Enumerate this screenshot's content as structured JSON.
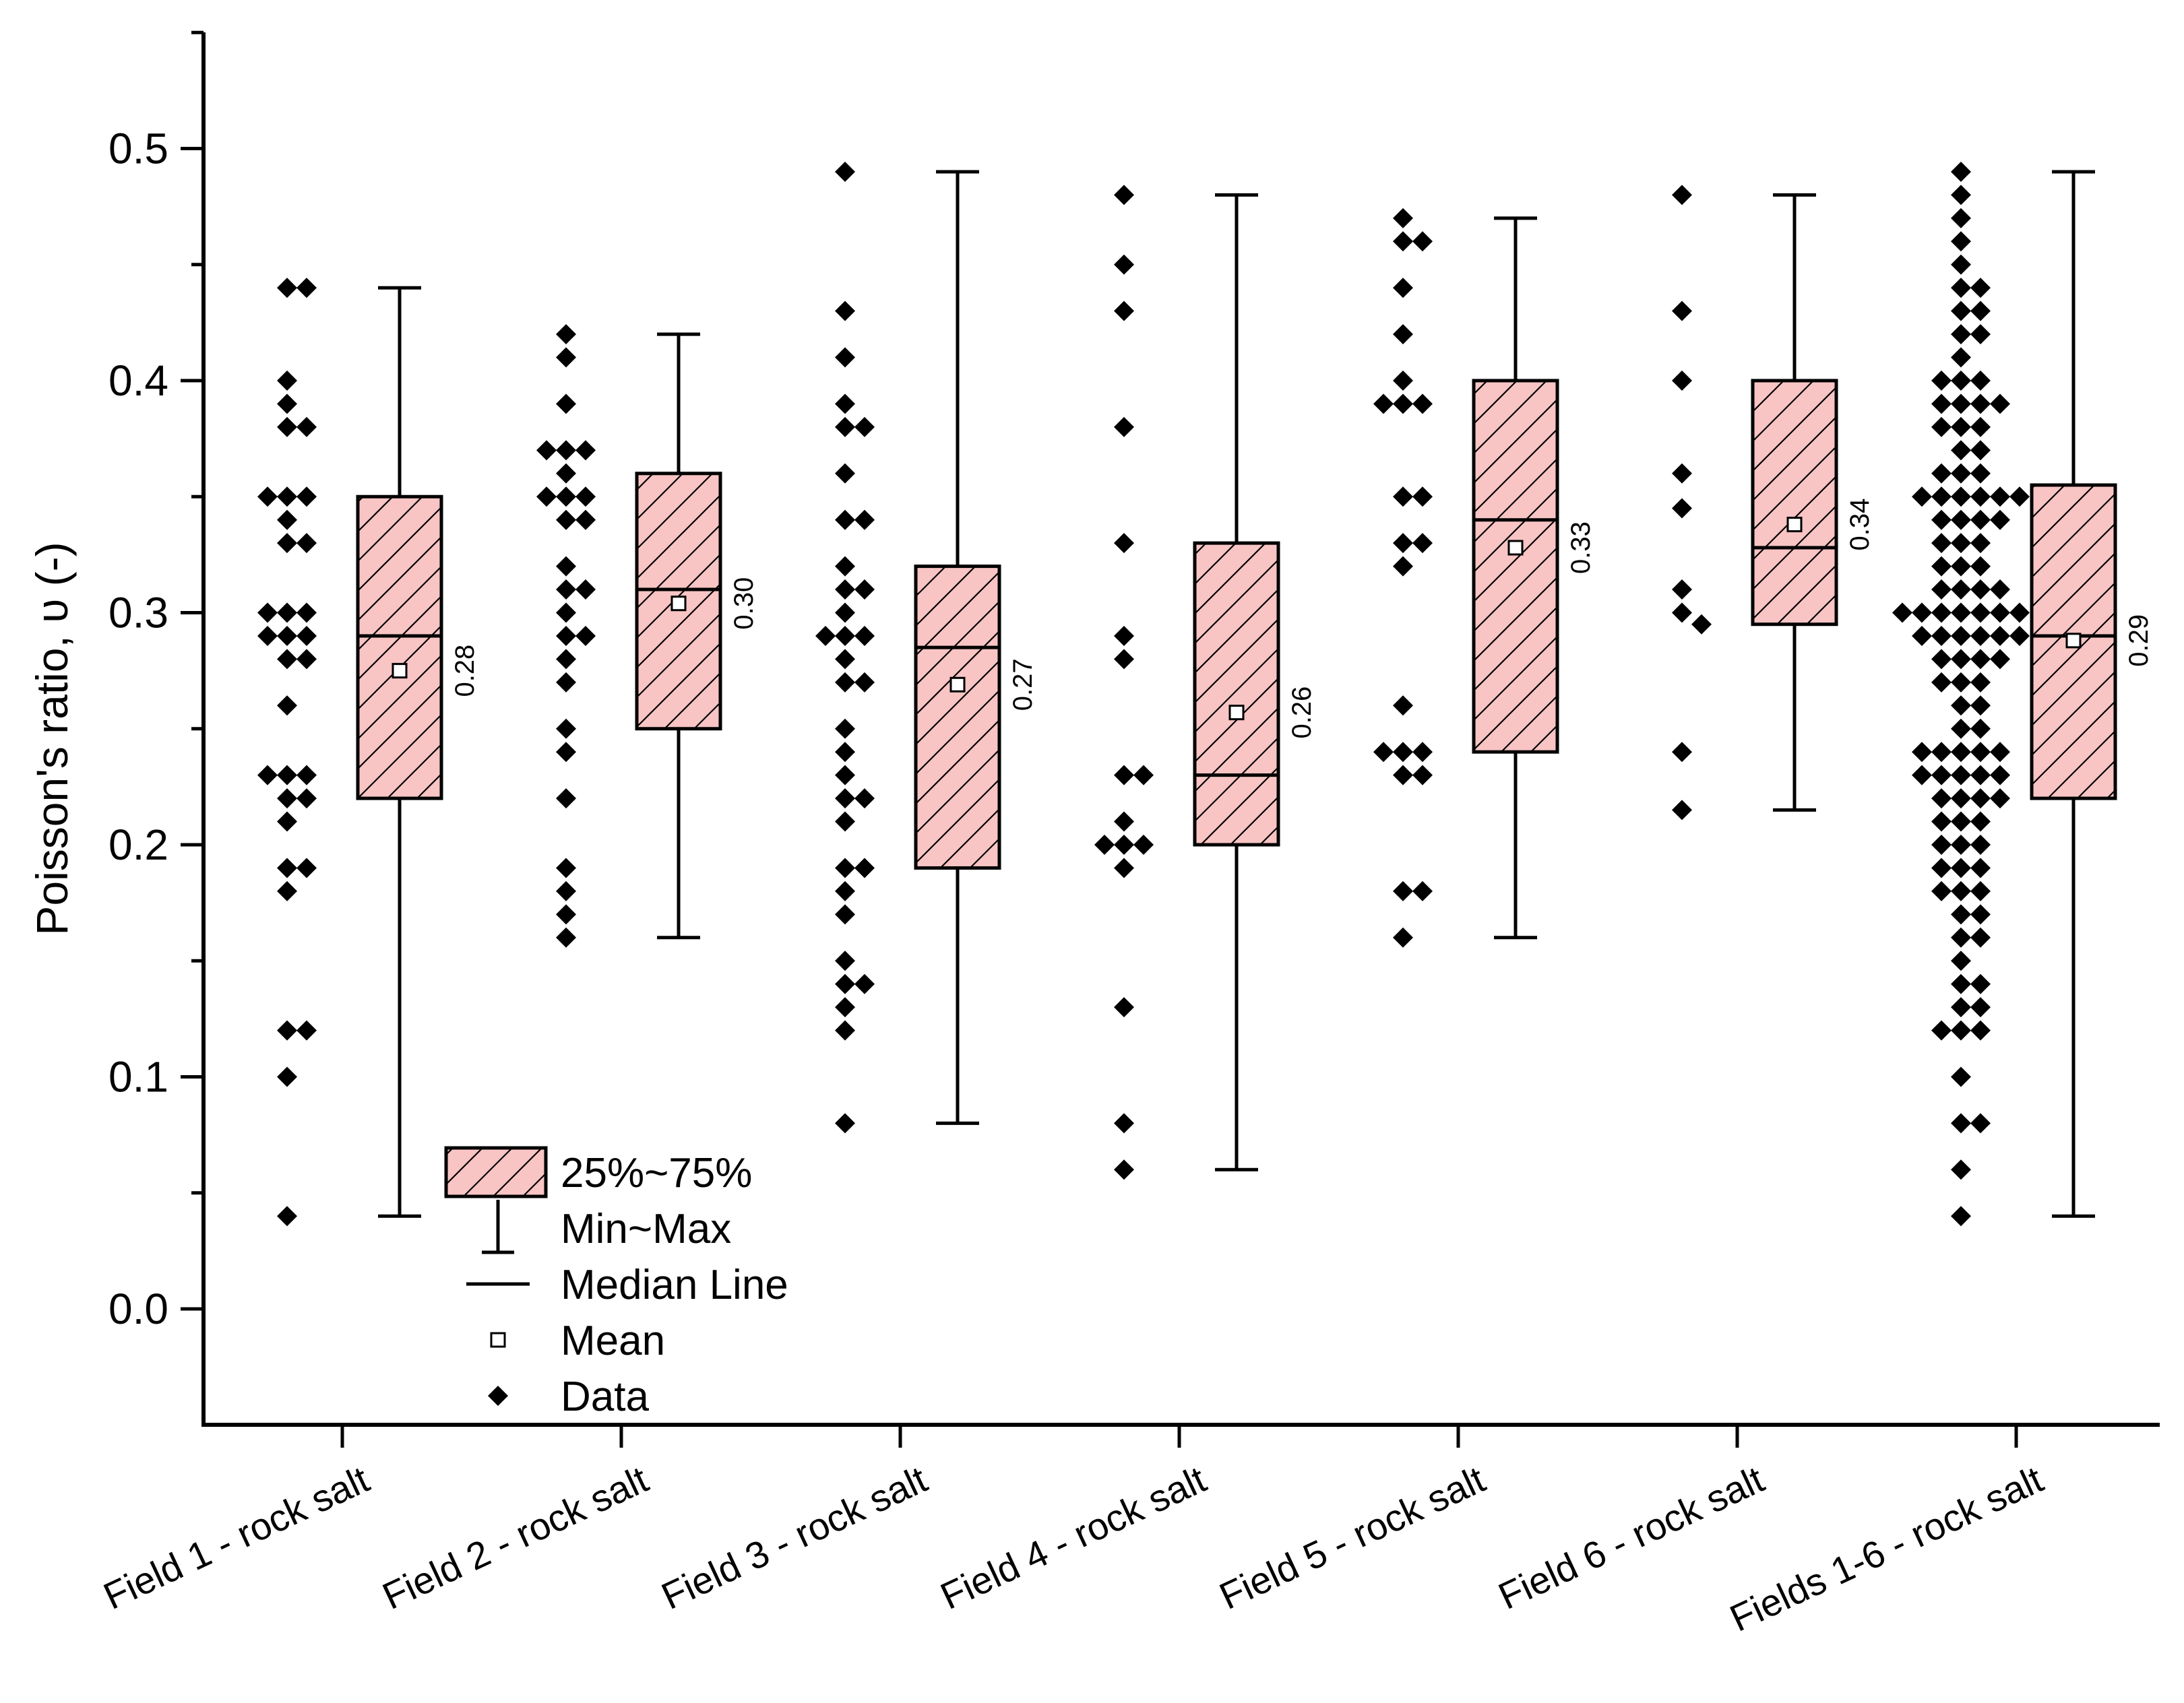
{
  "chart_data": {
    "type": "box",
    "title": "",
    "xlabel": "",
    "ylabel": "Poisson's ratio, υ (-)",
    "ylim": [
      -0.05,
      0.55
    ],
    "yticks": [
      0.0,
      0.1,
      0.2,
      0.3,
      0.4,
      0.5
    ],
    "ytick_labels": [
      "0.0",
      "0.1",
      "0.2",
      "0.3",
      "0.4",
      "0.5"
    ],
    "colors": {
      "box_fill": "#f8c4c4",
      "stroke": "#000000",
      "points": "#000000"
    },
    "legend": {
      "position": "bottom-left",
      "items": [
        {
          "key": "box",
          "label": "25%~75%"
        },
        {
          "key": "whisker",
          "label": "Min~Max"
        },
        {
          "key": "median",
          "label": "Median Line"
        },
        {
          "key": "mean",
          "label": "Mean"
        },
        {
          "key": "data",
          "label": "Data"
        }
      ]
    },
    "groups": [
      {
        "label": "Field 1 - rock salt",
        "min": 0.04,
        "q1": 0.22,
        "median": 0.29,
        "q3": 0.35,
        "max": 0.44,
        "mean": 0.275,
        "mean_label": "0.28",
        "points": [
          0.44,
          0.44,
          0.4,
          0.39,
          0.38,
          0.38,
          0.35,
          0.35,
          0.35,
          0.34,
          0.33,
          0.33,
          0.3,
          0.3,
          0.3,
          0.29,
          0.29,
          0.29,
          0.28,
          0.28,
          0.26,
          0.23,
          0.23,
          0.23,
          0.22,
          0.22,
          0.21,
          0.19,
          0.19,
          0.18,
          0.12,
          0.12,
          0.1,
          0.04
        ]
      },
      {
        "label": "Field 2 - rock salt",
        "min": 0.16,
        "q1": 0.25,
        "median": 0.31,
        "q3": 0.36,
        "max": 0.42,
        "mean": 0.304,
        "mean_label": "0.30",
        "points": [
          0.42,
          0.41,
          0.39,
          0.37,
          0.37,
          0.37,
          0.36,
          0.35,
          0.35,
          0.35,
          0.34,
          0.34,
          0.32,
          0.31,
          0.31,
          0.3,
          0.29,
          0.29,
          0.27,
          0.28,
          0.25,
          0.24,
          0.22,
          0.19,
          0.18,
          0.17,
          0.16
        ]
      },
      {
        "label": "Field 3 - rock salt",
        "min": 0.08,
        "q1": 0.19,
        "median": 0.285,
        "q3": 0.32,
        "max": 0.49,
        "mean": 0.269,
        "mean_label": "0.27",
        "points": [
          0.49,
          0.43,
          0.41,
          0.39,
          0.38,
          0.38,
          0.36,
          0.34,
          0.34,
          0.32,
          0.31,
          0.31,
          0.3,
          0.29,
          0.29,
          0.29,
          0.28,
          0.27,
          0.27,
          0.25,
          0.24,
          0.23,
          0.22,
          0.22,
          0.21,
          0.19,
          0.19,
          0.18,
          0.17,
          0.15,
          0.14,
          0.14,
          0.13,
          0.12,
          0.08
        ]
      },
      {
        "label": "Field 4 - rock salt",
        "min": 0.06,
        "q1": 0.2,
        "median": 0.23,
        "q3": 0.33,
        "max": 0.48,
        "mean": 0.257,
        "mean_label": "0.26",
        "points": [
          0.48,
          0.45,
          0.43,
          0.38,
          0.33,
          0.29,
          0.28,
          0.23,
          0.23,
          0.21,
          0.2,
          0.2,
          0.2,
          0.19,
          0.13,
          0.08,
          0.06
        ]
      },
      {
        "label": "Field 5 - rock salt",
        "min": 0.16,
        "q1": 0.24,
        "median": 0.34,
        "q3": 0.4,
        "max": 0.47,
        "mean": 0.328,
        "mean_label": "0.33",
        "points": [
          0.47,
          0.46,
          0.46,
          0.44,
          0.42,
          0.4,
          0.39,
          0.39,
          0.39,
          0.35,
          0.35,
          0.33,
          0.33,
          0.32,
          0.26,
          0.24,
          0.24,
          0.24,
          0.23,
          0.23,
          0.18,
          0.18,
          0.16
        ]
      },
      {
        "label": "Field 6 - rock salt",
        "min": 0.215,
        "q1": 0.295,
        "median": 0.328,
        "q3": 0.4,
        "max": 0.48,
        "mean": 0.338,
        "mean_label": "0.34",
        "points": [
          0.48,
          0.43,
          0.4,
          0.36,
          0.345,
          0.31,
          0.3,
          0.295,
          0.24,
          0.215
        ]
      },
      {
        "label": "Fields 1-6 - rock salt",
        "min": 0.04,
        "q1": 0.22,
        "median": 0.29,
        "q3": 0.355,
        "max": 0.49,
        "mean": 0.288,
        "mean_label": "0.29",
        "points": [
          0.49,
          0.48,
          0.47,
          0.46,
          0.45,
          0.44,
          0.44,
          0.43,
          0.43,
          0.42,
          0.42,
          0.41,
          0.4,
          0.4,
          0.4,
          0.39,
          0.39,
          0.39,
          0.39,
          0.38,
          0.38,
          0.38,
          0.37,
          0.37,
          0.36,
          0.36,
          0.36,
          0.35,
          0.35,
          0.35,
          0.35,
          0.35,
          0.35,
          0.34,
          0.34,
          0.34,
          0.34,
          0.33,
          0.33,
          0.33,
          0.32,
          0.32,
          0.32,
          0.31,
          0.31,
          0.31,
          0.31,
          0.3,
          0.3,
          0.3,
          0.3,
          0.3,
          0.3,
          0.3,
          0.29,
          0.29,
          0.29,
          0.29,
          0.29,
          0.29,
          0.28,
          0.28,
          0.28,
          0.28,
          0.27,
          0.27,
          0.27,
          0.26,
          0.26,
          0.25,
          0.25,
          0.24,
          0.24,
          0.24,
          0.24,
          0.24,
          0.23,
          0.23,
          0.23,
          0.23,
          0.23,
          0.22,
          0.22,
          0.22,
          0.22,
          0.21,
          0.21,
          0.21,
          0.2,
          0.2,
          0.2,
          0.19,
          0.19,
          0.19,
          0.18,
          0.18,
          0.18,
          0.17,
          0.17,
          0.16,
          0.16,
          0.15,
          0.14,
          0.14,
          0.13,
          0.13,
          0.12,
          0.12,
          0.12,
          0.1,
          0.08,
          0.08,
          0.06,
          0.04
        ]
      }
    ]
  }
}
